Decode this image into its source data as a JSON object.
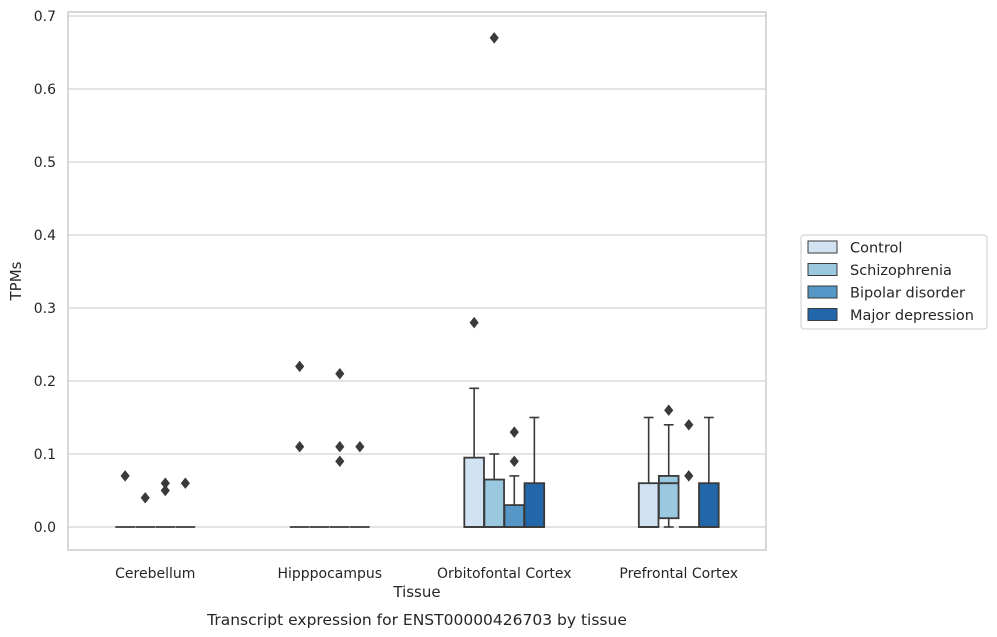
{
  "caption": "Transcript expression for ENST00000426703 by tissue",
  "chart_data": {
    "type": "box",
    "title": "",
    "xlabel": "Tissue",
    "ylabel": "TPMs",
    "ylim": [
      -0.03,
      0.705
    ],
    "yticks": [
      0.0,
      0.1,
      0.2,
      0.3,
      0.4,
      0.5,
      0.6,
      0.7
    ],
    "ytick_labels": [
      "0.0",
      "0.1",
      "0.2",
      "0.3",
      "0.4",
      "0.5",
      "0.6",
      "0.7"
    ],
    "grid": "horizontal",
    "legend_placement": "right",
    "categories": [
      "Cerebellum",
      "Hipppocampus",
      "Orbitofontal Cortex",
      "Prefrontal Cortex"
    ],
    "series": [
      {
        "name": "Control",
        "color": "#d1e2f2",
        "boxes": [
          {
            "q1": 0.0,
            "median": 0.0,
            "q3": 0.0,
            "whislo": 0.0,
            "whishi": 0.0,
            "fliers": [
              0.07
            ]
          },
          {
            "q1": 0.0,
            "median": 0.0,
            "q3": 0.0,
            "whislo": 0.0,
            "whishi": 0.0,
            "fliers": [
              0.22,
              0.11
            ]
          },
          {
            "q1": 0.0,
            "median": 0.0,
            "q3": 0.095,
            "whislo": 0.0,
            "whishi": 0.19,
            "fliers": [
              0.28
            ]
          },
          {
            "q1": 0.0,
            "median": 0.0,
            "q3": 0.06,
            "whislo": 0.0,
            "whishi": 0.15,
            "fliers": []
          }
        ]
      },
      {
        "name": "Schizophrenia",
        "color": "#9ac8df",
        "boxes": [
          {
            "q1": 0.0,
            "median": 0.0,
            "q3": 0.0,
            "whislo": 0.0,
            "whishi": 0.0,
            "fliers": [
              0.04
            ]
          },
          {
            "q1": 0.0,
            "median": 0.0,
            "q3": 0.0,
            "whislo": 0.0,
            "whishi": 0.0,
            "fliers": []
          },
          {
            "q1": 0.0,
            "median": 0.0,
            "q3": 0.065,
            "whislo": 0.0,
            "whishi": 0.1,
            "fliers": [
              0.67
            ]
          },
          {
            "q1": 0.012,
            "median": 0.06,
            "q3": 0.07,
            "whislo": 0.0,
            "whishi": 0.14,
            "fliers": [
              0.16
            ]
          }
        ]
      },
      {
        "name": "Bipolar disorder",
        "color": "#5597c6",
        "boxes": [
          {
            "q1": 0.0,
            "median": 0.0,
            "q3": 0.0,
            "whislo": 0.0,
            "whishi": 0.0,
            "fliers": [
              0.06,
              0.05
            ]
          },
          {
            "q1": 0.0,
            "median": 0.0,
            "q3": 0.0,
            "whislo": 0.0,
            "whishi": 0.0,
            "fliers": [
              0.21,
              0.11,
              0.09
            ]
          },
          {
            "q1": 0.0,
            "median": 0.0,
            "q3": 0.03,
            "whislo": 0.0,
            "whishi": 0.07,
            "fliers": [
              0.13,
              0.09
            ]
          },
          {
            "q1": 0.0,
            "median": 0.0,
            "q3": 0.0,
            "whislo": 0.0,
            "whishi": 0.0,
            "fliers": [
              0.14,
              0.07
            ]
          }
        ]
      },
      {
        "name": "Major depression",
        "color": "#2167a9",
        "boxes": [
          {
            "q1": 0.0,
            "median": 0.0,
            "q3": 0.0,
            "whislo": 0.0,
            "whishi": 0.0,
            "fliers": [
              0.06
            ]
          },
          {
            "q1": 0.0,
            "median": 0.0,
            "q3": 0.0,
            "whislo": 0.0,
            "whishi": 0.0,
            "fliers": [
              0.11
            ]
          },
          {
            "q1": 0.0,
            "median": 0.0,
            "q3": 0.06,
            "whislo": 0.0,
            "whishi": 0.15,
            "fliers": []
          },
          {
            "q1": 0.0,
            "median": 0.0,
            "q3": 0.06,
            "whislo": 0.0,
            "whishi": 0.15,
            "fliers": []
          }
        ]
      }
    ]
  },
  "colors": {
    "grid": "#d4d4d4",
    "frame": "#cccccc",
    "box_edge": "#3a3a3a",
    "text": "#262626"
  }
}
